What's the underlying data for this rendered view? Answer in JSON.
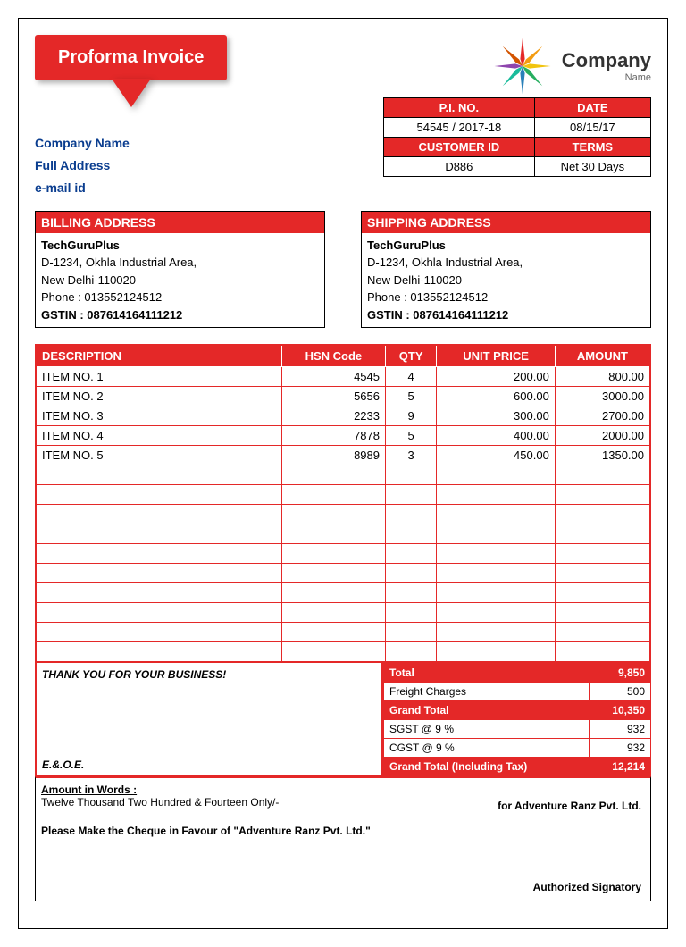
{
  "title": "Proforma Invoice",
  "logo": {
    "company": "Company",
    "sub": "Name"
  },
  "meta": {
    "headers1": [
      "P.I. NO.",
      "DATE"
    ],
    "values1": [
      "54545 / 2017-18",
      "08/15/17"
    ],
    "headers2": [
      "CUSTOMER ID",
      "TERMS"
    ],
    "values2": [
      "D886",
      "Net 30 Days"
    ]
  },
  "company_block": [
    "Company Name",
    "Full Address",
    "e-mail id"
  ],
  "billing": {
    "title": "BILLING ADDRESS",
    "name": "TechGuruPlus",
    "line1": "D-1234, Okhla Industrial Area,",
    "line2": "New Delhi-110020",
    "phone": "Phone : 013552124512",
    "gstin": "GSTIN : 087614164111212"
  },
  "shipping": {
    "title": "SHIPPING ADDRESS",
    "name": "TechGuruPlus",
    "line1": "D-1234, Okhla Industrial Area,",
    "line2": "New Delhi-110020",
    "phone": "Phone : 013552124512",
    "gstin": "GSTIN : 087614164111212"
  },
  "items": {
    "headers": [
      "DESCRIPTION",
      "HSN Code",
      "QTY",
      "UNIT PRICE",
      "AMOUNT"
    ],
    "rows": [
      [
        "ITEM NO. 1",
        "4545",
        "4",
        "200.00",
        "800.00"
      ],
      [
        "ITEM NO. 2",
        "5656",
        "5",
        "600.00",
        "3000.00"
      ],
      [
        "ITEM NO. 3",
        "2233",
        "9",
        "300.00",
        "2700.00"
      ],
      [
        "ITEM NO. 4",
        "7878",
        "5",
        "400.00",
        "2000.00"
      ],
      [
        "ITEM NO. 5",
        "8989",
        "3",
        "450.00",
        "1350.00"
      ]
    ],
    "blank_rows": 10
  },
  "thanks": "THANK YOU FOR YOUR BUSINESS!",
  "eoe": "E.&.O.E.",
  "totals": {
    "rows": [
      {
        "label": "Total",
        "value": "9,850",
        "hl": true
      },
      {
        "label": "Freight Charges",
        "value": "500",
        "hl": false
      },
      {
        "label": "Grand Total",
        "value": "10,350",
        "hl": true
      },
      {
        "label": "SGST @ 9 %",
        "value": "932",
        "hl": false
      },
      {
        "label": "CGST @ 9 %",
        "value": "932",
        "hl": false
      },
      {
        "label": "Grand Total (Including Tax)",
        "value": "12,214",
        "hl": true
      }
    ]
  },
  "footer": {
    "words_label": "Amount in Words :",
    "words": "Twelve Thousand Two Hundred & Fourteen Only/-",
    "for": "for Adventure Ranz Pvt. Ltd.",
    "cheque": "Please Make the Cheque in Favour of \"Adventure Ranz Pvt. Ltd.\"",
    "sign": "Authorized Signatory"
  },
  "colors": {
    "accent": "#e42828",
    "link": "#0a3d8f"
  },
  "star_colors": [
    "#e42828",
    "#f39c12",
    "#f1c40f",
    "#27ae60",
    "#2980b9",
    "#1abc9c",
    "#8e44ad",
    "#d35400"
  ]
}
